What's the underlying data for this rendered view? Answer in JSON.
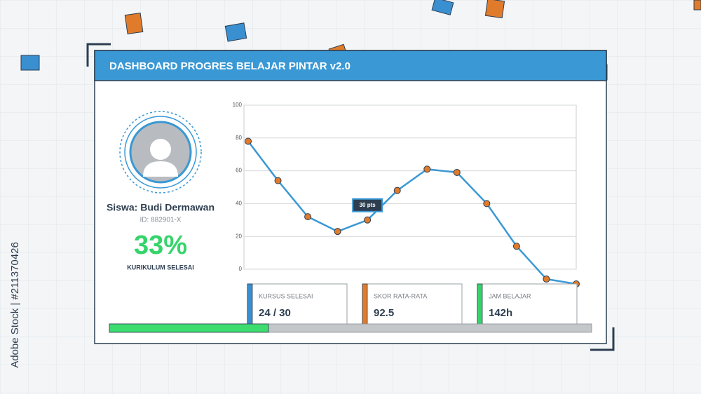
{
  "header": {
    "title": "DASHBOARD PROGRES BELAJAR PINTAR v2.0"
  },
  "profile": {
    "name": "Siswa: Budi Dermawan",
    "id": "ID: 882901-X",
    "progress": {
      "value": 33,
      "label": "33%"
    },
    "progress_caption": "KURIKULUM SELESAI"
  },
  "stats": [
    {
      "label": "KURSUS SELESAI",
      "value": "24 / 30",
      "color": "#3a8fd0"
    },
    {
      "label": "SKOR RATA-RATA",
      "value": "92.5",
      "color": "#e07b2c"
    },
    {
      "label": "JAM BELAJAR",
      "value": "142h",
      "color": "#35d46a"
    }
  ],
  "chart_data": {
    "type": "line",
    "categories": [
      null,
      null,
      null,
      null,
      null,
      null,
      null,
      null,
      null,
      null,
      null,
      null
    ],
    "values": [
      78,
      54,
      32,
      23,
      30,
      48,
      61,
      59,
      40,
      14,
      -6,
      -9
    ],
    "color": "#3a98d4",
    "marker_color": "#e07b2c",
    "ylim": [
      0,
      100
    ],
    "yticks": [
      0,
      20,
      40,
      60,
      80,
      100
    ],
    "grid": true,
    "annotation": {
      "index": 4,
      "text": "30 pts"
    }
  },
  "watermark": "Adobe Stock | #211370426"
}
